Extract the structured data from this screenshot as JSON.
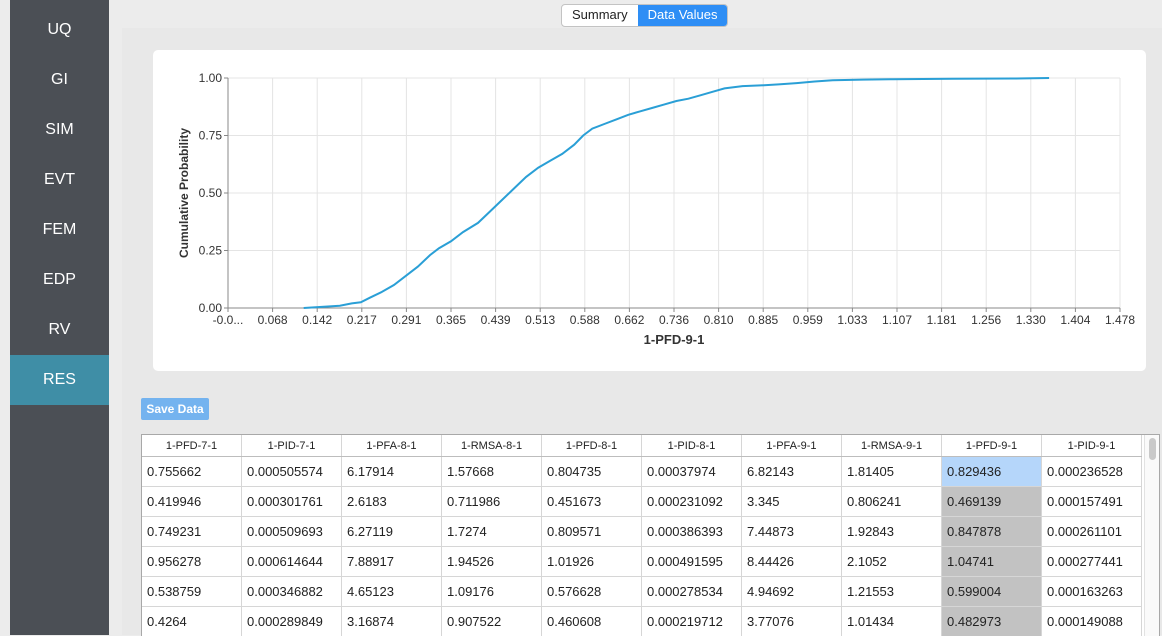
{
  "sidebar": {
    "items": [
      {
        "label": "UQ",
        "active": false
      },
      {
        "label": "GI",
        "active": false
      },
      {
        "label": "SIM",
        "active": false
      },
      {
        "label": "EVT",
        "active": false
      },
      {
        "label": "FEM",
        "active": false
      },
      {
        "label": "EDP",
        "active": false
      },
      {
        "label": "RV",
        "active": false
      },
      {
        "label": "RES",
        "active": true
      }
    ]
  },
  "tabs": {
    "summary": "Summary",
    "data_values": "Data Values",
    "active": "Data Values"
  },
  "save_button": "Save Data",
  "colors": {
    "line": "#2a9fd6",
    "accent": "#2e8ef5",
    "sidebar": "#4b4f55",
    "sidebar_active": "#3f8ea6",
    "selected_column": "#c2c2c2",
    "selected_cell": "#b5d6fa"
  },
  "chart_data": {
    "type": "line",
    "xlabel": "1-PFD-9-1",
    "ylabel": "Cumulative Probability",
    "x_ticks": [
      "-0.0...",
      "0.068",
      "0.142",
      "0.217",
      "0.291",
      "0.365",
      "0.439",
      "0.513",
      "0.588",
      "0.662",
      "0.736",
      "0.810",
      "0.885",
      "0.959",
      "1.033",
      "1.107",
      "1.181",
      "1.256",
      "1.330",
      "1.404",
      "1.478"
    ],
    "y_ticks": [
      "0.00",
      "0.25",
      "0.50",
      "0.75",
      "1.00"
    ],
    "xlim": [
      -0.006,
      1.478
    ],
    "ylim": [
      0,
      1
    ],
    "grid": true,
    "series": [
      {
        "x": [
          0.12,
          0.15,
          0.18,
          0.2,
          0.215,
          0.23,
          0.25,
          0.27,
          0.29,
          0.31,
          0.33,
          0.345,
          0.365,
          0.385,
          0.41,
          0.43,
          0.45,
          0.47,
          0.49,
          0.51,
          0.53,
          0.55,
          0.57,
          0.585,
          0.6,
          0.62,
          0.64,
          0.66,
          0.68,
          0.7,
          0.72,
          0.74,
          0.76,
          0.78,
          0.8,
          0.82,
          0.85,
          0.88,
          0.91,
          0.94,
          0.97,
          1.0,
          1.05,
          1.1,
          1.2,
          1.3,
          1.36
        ],
        "y": [
          0.0,
          0.005,
          0.01,
          0.02,
          0.025,
          0.045,
          0.07,
          0.1,
          0.14,
          0.18,
          0.23,
          0.26,
          0.29,
          0.33,
          0.37,
          0.42,
          0.47,
          0.52,
          0.57,
          0.61,
          0.64,
          0.67,
          0.71,
          0.75,
          0.78,
          0.8,
          0.82,
          0.84,
          0.855,
          0.87,
          0.885,
          0.9,
          0.91,
          0.925,
          0.94,
          0.955,
          0.965,
          0.968,
          0.972,
          0.978,
          0.985,
          0.99,
          0.993,
          0.995,
          0.997,
          0.998,
          1.0
        ]
      }
    ]
  },
  "table": {
    "columns": [
      "1-PFD-7-1",
      "1-PID-7-1",
      "1-PFA-8-1",
      "1-RMSA-8-1",
      "1-PFD-8-1",
      "1-PID-8-1",
      "1-PFA-9-1",
      "1-RMSA-9-1",
      "1-PFD-9-1",
      "1-PID-9-1"
    ],
    "rows": [
      [
        "0.755662",
        "0.000505574",
        "6.17914",
        "1.57668",
        "0.804735",
        "0.00037974",
        "6.82143",
        "1.81405",
        "0.829436",
        "0.000236528"
      ],
      [
        "0.419946",
        "0.000301761",
        "2.6183",
        "0.711986",
        "0.451673",
        "0.000231092",
        "3.345",
        "0.806241",
        "0.469139",
        "0.000157491"
      ],
      [
        "0.749231",
        "0.000509693",
        "6.27119",
        "1.7274",
        "0.809571",
        "0.000386393",
        "7.44873",
        "1.92843",
        "0.847878",
        "0.000261101"
      ],
      [
        "0.956278",
        "0.000614644",
        "7.88917",
        "1.94526",
        "1.01926",
        "0.000491595",
        "8.44426",
        "2.1052",
        "1.04741",
        "0.000277441"
      ],
      [
        "0.538759",
        "0.000346882",
        "4.65123",
        "1.09176",
        "0.576628",
        "0.000278534",
        "4.94692",
        "1.21553",
        "0.599004",
        "0.000163263"
      ],
      [
        "0.4264",
        "0.000289849",
        "3.16874",
        "0.907522",
        "0.460608",
        "0.000219712",
        "3.77076",
        "1.01434",
        "0.482973",
        "0.000149088"
      ]
    ]
  }
}
